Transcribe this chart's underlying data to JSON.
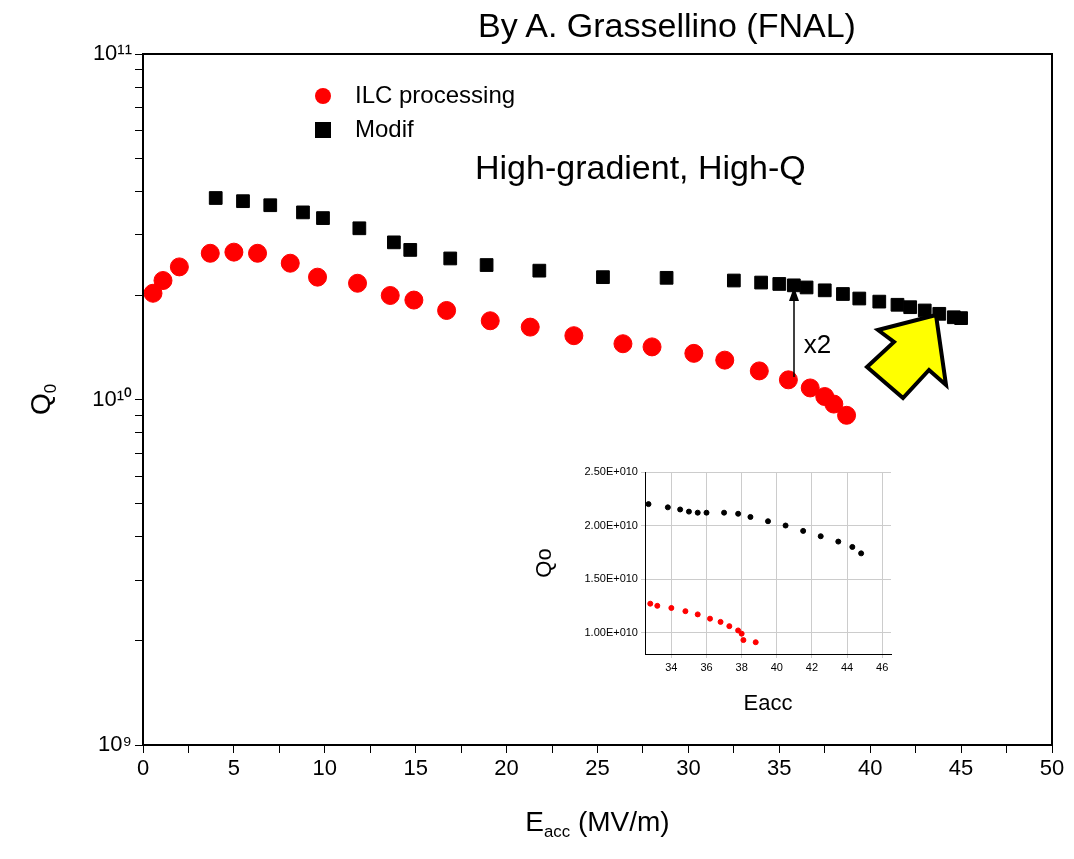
{
  "chart_data": [
    {
      "type": "scatter",
      "xlabel": "E$_{acc}$ (MV/m)",
      "ylabel": "Q$_{0}$",
      "log": "y",
      "grid": false,
      "legend": "top left",
      "xlim": [
        0,
        50
      ],
      "ylim": [
        1000000000.0,
        100000000000.0
      ],
      "xticks": [
        0,
        {
          "value": 2.5,
          "label": null
        },
        5,
        {
          "value": 7.5,
          "label": null
        },
        10,
        {
          "value": 12.5,
          "label": null
        },
        15,
        {
          "value": 17.5,
          "label": null
        },
        20,
        {
          "value": 22.5,
          "label": null
        },
        25,
        {
          "value": 27.5,
          "label": null
        },
        30,
        {
          "value": 32.5,
          "label": null
        },
        35,
        {
          "value": 37.5,
          "label": null
        },
        40,
        {
          "value": 42.5,
          "label": null
        },
        45,
        {
          "value": 47.5,
          "label": null
        },
        50
      ],
      "yticks": [
        {
          "value": 1000000000.0,
          "label": "10⁹"
        },
        {
          "value": 2000000000.0,
          "label": null
        },
        {
          "value": 3000000000.0,
          "label": null
        },
        {
          "value": 4000000000.0,
          "label": null
        },
        {
          "value": 5000000000.0,
          "label": null
        },
        {
          "value": 6000000000.0,
          "label": null
        },
        {
          "value": 7000000000.0,
          "label": null
        },
        {
          "value": 8000000000.0,
          "label": null
        },
        {
          "value": 9000000000.0,
          "label": null
        },
        {
          "value": 10000000000.0,
          "label": "10¹⁰"
        },
        {
          "value": 20000000000.0,
          "label": null
        },
        {
          "value": 30000000000.0,
          "label": null
        },
        {
          "value": 40000000000.0,
          "label": null
        },
        {
          "value": 50000000000.0,
          "label": null
        },
        {
          "value": 60000000000.0,
          "label": null
        },
        {
          "value": 70000000000.0,
          "label": null
        },
        {
          "value": 80000000000.0,
          "label": null
        },
        {
          "value": 90000000000.0,
          "label": null
        },
        {
          "value": 100000000000.0,
          "label": "10¹¹"
        }
      ],
      "series": [
        {
          "name": "ILC processing",
          "color": "#ff0000",
          "marker": "circle",
          "x": [
            0.55,
            1.1,
            2.0,
            3.7,
            5.0,
            6.3,
            8.1,
            9.6,
            11.8,
            13.6,
            14.9,
            16.7,
            19.1,
            21.3,
            23.7,
            26.4,
            28.0,
            30.3,
            32.0,
            33.9,
            35.5,
            36.7,
            37.5,
            38.0,
            38.7
          ],
          "values": [
            20300000000.0,
            22100000000.0,
            24200000000.0,
            26500000000.0,
            26700000000.0,
            26500000000.0,
            24800000000.0,
            22600000000.0,
            21700000000.0,
            20000000000.0,
            19400000000.0,
            18100000000.0,
            16900000000.0,
            16200000000.0,
            15300000000.0,
            14500000000.0,
            14200000000.0,
            13600000000.0,
            13000000000.0,
            12100000000.0,
            11400000000.0,
            10800000000.0,
            10200000000.0,
            9700000000.0,
            9000000000.0
          ]
        },
        {
          "name": "Modif",
          "color": "#000000",
          "marker": "square",
          "x": [
            4.0,
            5.5,
            7.0,
            8.8,
            9.9,
            11.9,
            13.8,
            14.7,
            16.9,
            18.9,
            21.8,
            25.3,
            28.8,
            32.5,
            34.0,
            35.0,
            35.8,
            36.5,
            37.5,
            38.5,
            39.4,
            40.5,
            41.5,
            42.2,
            43.0,
            43.8,
            44.6,
            45.0
          ],
          "values": [
            38300000000.0,
            37500000000.0,
            36500000000.0,
            34800000000.0,
            33500000000.0,
            31300000000.0,
            28500000000.0,
            27100000000.0,
            25600000000.0,
            24500000000.0,
            23600000000.0,
            22600000000.0,
            22500000000.0,
            22100000000.0,
            21800000000.0,
            21600000000.0,
            21400000000.0,
            21100000000.0,
            20700000000.0,
            20200000000.0,
            19600000000.0,
            19200000000.0,
            18800000000.0,
            18500000000.0,
            18100000000.0,
            17700000000.0,
            17300000000.0,
            17200000000.0
          ]
        }
      ],
      "annotations": [
        "By A. Grassellino (FNAL)",
        "High-gradient, High-Q",
        {
          "text": "x2",
          "x": 35.8,
          "y": 21400000000.0
        }
      ]
    },
    {
      "type": "scatter",
      "xlabel": "Eacc",
      "ylabel": "Qo",
      "grid": true,
      "marker": "circle",
      "xlim": [
        32.5,
        46.5
      ],
      "ylim": [
        8000000000.0,
        25000000000.0
      ],
      "xticks": [
        34,
        36,
        38,
        40,
        42,
        44,
        46
      ],
      "yticks": [
        {
          "value": 10000000000.0,
          "label": "1.00E+010"
        },
        {
          "value": 15000000000.0,
          "label": "1.50E+010"
        },
        {
          "value": 20000000000.0,
          "label": "2.00E+010"
        },
        {
          "value": 25000000000.0,
          "label": "2.50E+010"
        }
      ],
      "series": [
        {
          "color": "#000000",
          "x": [
            32.7,
            33.8,
            34.5,
            35.0,
            35.5,
            36.0,
            37.0,
            37.8,
            38.5,
            39.5,
            40.5,
            41.5,
            42.5,
            43.5,
            44.3,
            44.8
          ],
          "values": [
            22000000000.0,
            21700000000.0,
            21500000000.0,
            21300000000.0,
            21200000000.0,
            21200000000.0,
            21200000000.0,
            21100000000.0,
            20800000000.0,
            20400000000.0,
            20000000000.0,
            19500000000.0,
            19000000000.0,
            18500000000.0,
            18000000000.0,
            17400000000.0
          ]
        },
        {
          "color": "#ff0000",
          "x": [
            32.8,
            33.2,
            34.0,
            34.8,
            35.5,
            36.2,
            36.8,
            37.3,
            37.8,
            38.0,
            38.1,
            38.8
          ],
          "values": [
            12700000000.0,
            12500000000.0,
            12300000000.0,
            12000000000.0,
            11700000000.0,
            11300000000.0,
            11000000000.0,
            10600000000.0,
            10200000000.0,
            9900000000.0,
            9300000000.0,
            9100000000.0
          ]
        }
      ]
    }
  ]
}
